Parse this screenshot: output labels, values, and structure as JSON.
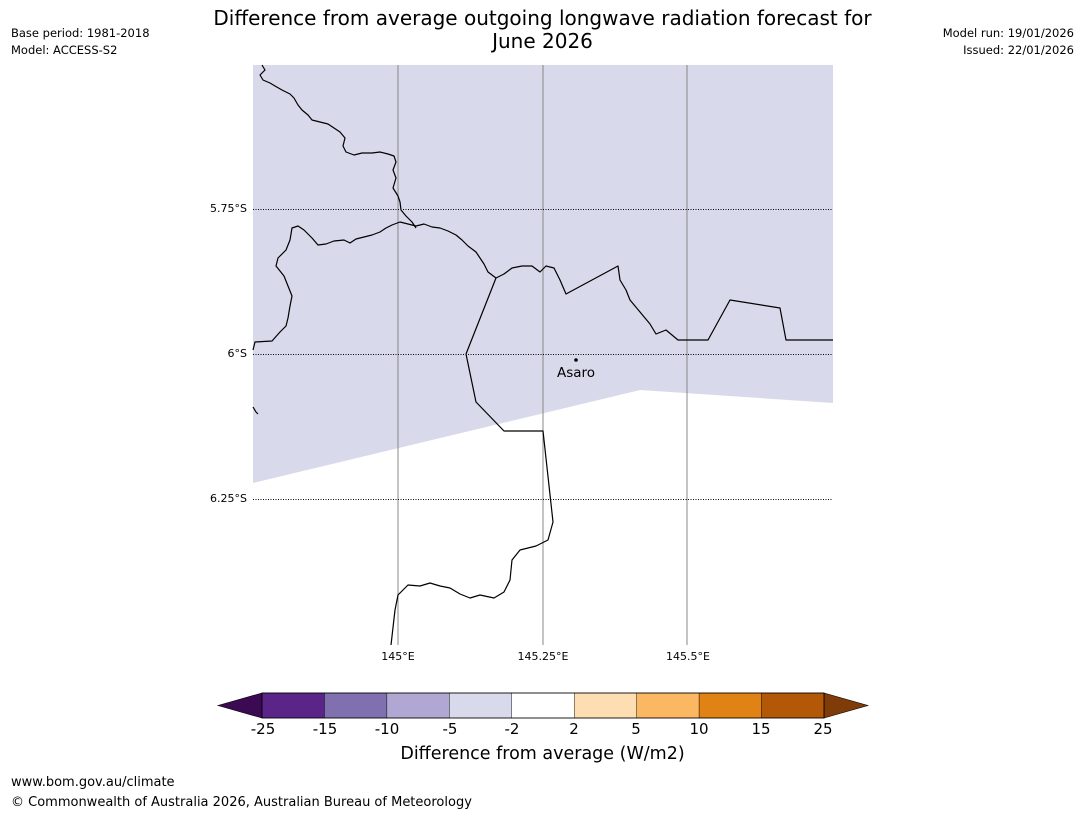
{
  "title_line1": "Difference from average outgoing longwave radiation forecast for",
  "title_line2": "June 2026",
  "meta": {
    "base_period": "Base period: 1981-2018",
    "model": "Model: ACCESS-S2",
    "model_run": "Model run: 19/01/2026",
    "issued": "Issued: 22/01/2026"
  },
  "map": {
    "latitude_labels": [
      "5.75°S",
      "6°S",
      "6.25°S"
    ],
    "longitude_labels": [
      "145°E",
      "145.25°E",
      "145.5°E"
    ],
    "place": {
      "name": "Asaro",
      "lon": 145.3,
      "lat": -6.01
    },
    "fill_category": "-5 to -2",
    "fill_color": "#d8d9ea"
  },
  "colorbar": {
    "ticks": [
      "-25",
      "-15",
      "-10",
      "-5",
      "-2",
      "2",
      "5",
      "10",
      "15",
      "25"
    ],
    "bins": [
      {
        "range": "-15 to -25",
        "color": "#5a2489"
      },
      {
        "range": "-10 to -15",
        "color": "#8070b0"
      },
      {
        "range": "-5 to -10",
        "color": "#b0a8d2"
      },
      {
        "range": "-2 to -5",
        "color": "#d8d9ea"
      },
      {
        "range": "-2 to 2",
        "color": "#ffffff"
      },
      {
        "range": "2 to 5",
        "color": "#fddeb3"
      },
      {
        "range": "5 to 10",
        "color": "#fbb761"
      },
      {
        "range": "10 to 15",
        "color": "#e08214"
      },
      {
        "range": "15 to 25",
        "color": "#b35806"
      }
    ],
    "low_extend_color": "#3b0a53",
    "high_extend_color": "#7f3b08",
    "title": "Difference from average (W/m2)"
  },
  "footer": {
    "url": "www.bom.gov.au/climate",
    "copyright": "© Commonwealth of Australia 2026, Australian Bureau of Meteorology"
  }
}
